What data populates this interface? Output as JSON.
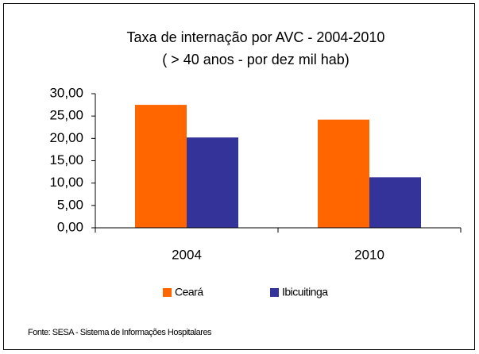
{
  "chart_data": {
    "type": "bar",
    "title": [
      "Taxa de internação por AVC - 2004-2010",
      "( > 40 anos - por dez mil hab)"
    ],
    "categories": [
      "2004",
      "2010"
    ],
    "series": [
      {
        "name": "Ceará",
        "color": "#ff6600",
        "values": [
          27.5,
          24.2
        ]
      },
      {
        "name": "Ibicuitinga",
        "color": "#333399",
        "values": [
          20.2,
          11.3
        ]
      }
    ],
    "ylim": [
      0,
      30
    ],
    "yticks": [
      {
        "value": 0,
        "label": "0,00"
      },
      {
        "value": 5,
        "label": "5,00"
      },
      {
        "value": 10,
        "label": "10,00"
      },
      {
        "value": 15,
        "label": "15,00"
      },
      {
        "value": 20,
        "label": "20,00"
      },
      {
        "value": 25,
        "label": "25,00"
      },
      {
        "value": 30,
        "label": "30,00"
      }
    ],
    "grid": false,
    "legend": "bottom",
    "source": "Fonte: SESA - Sistema de Informações Hospitalares"
  }
}
